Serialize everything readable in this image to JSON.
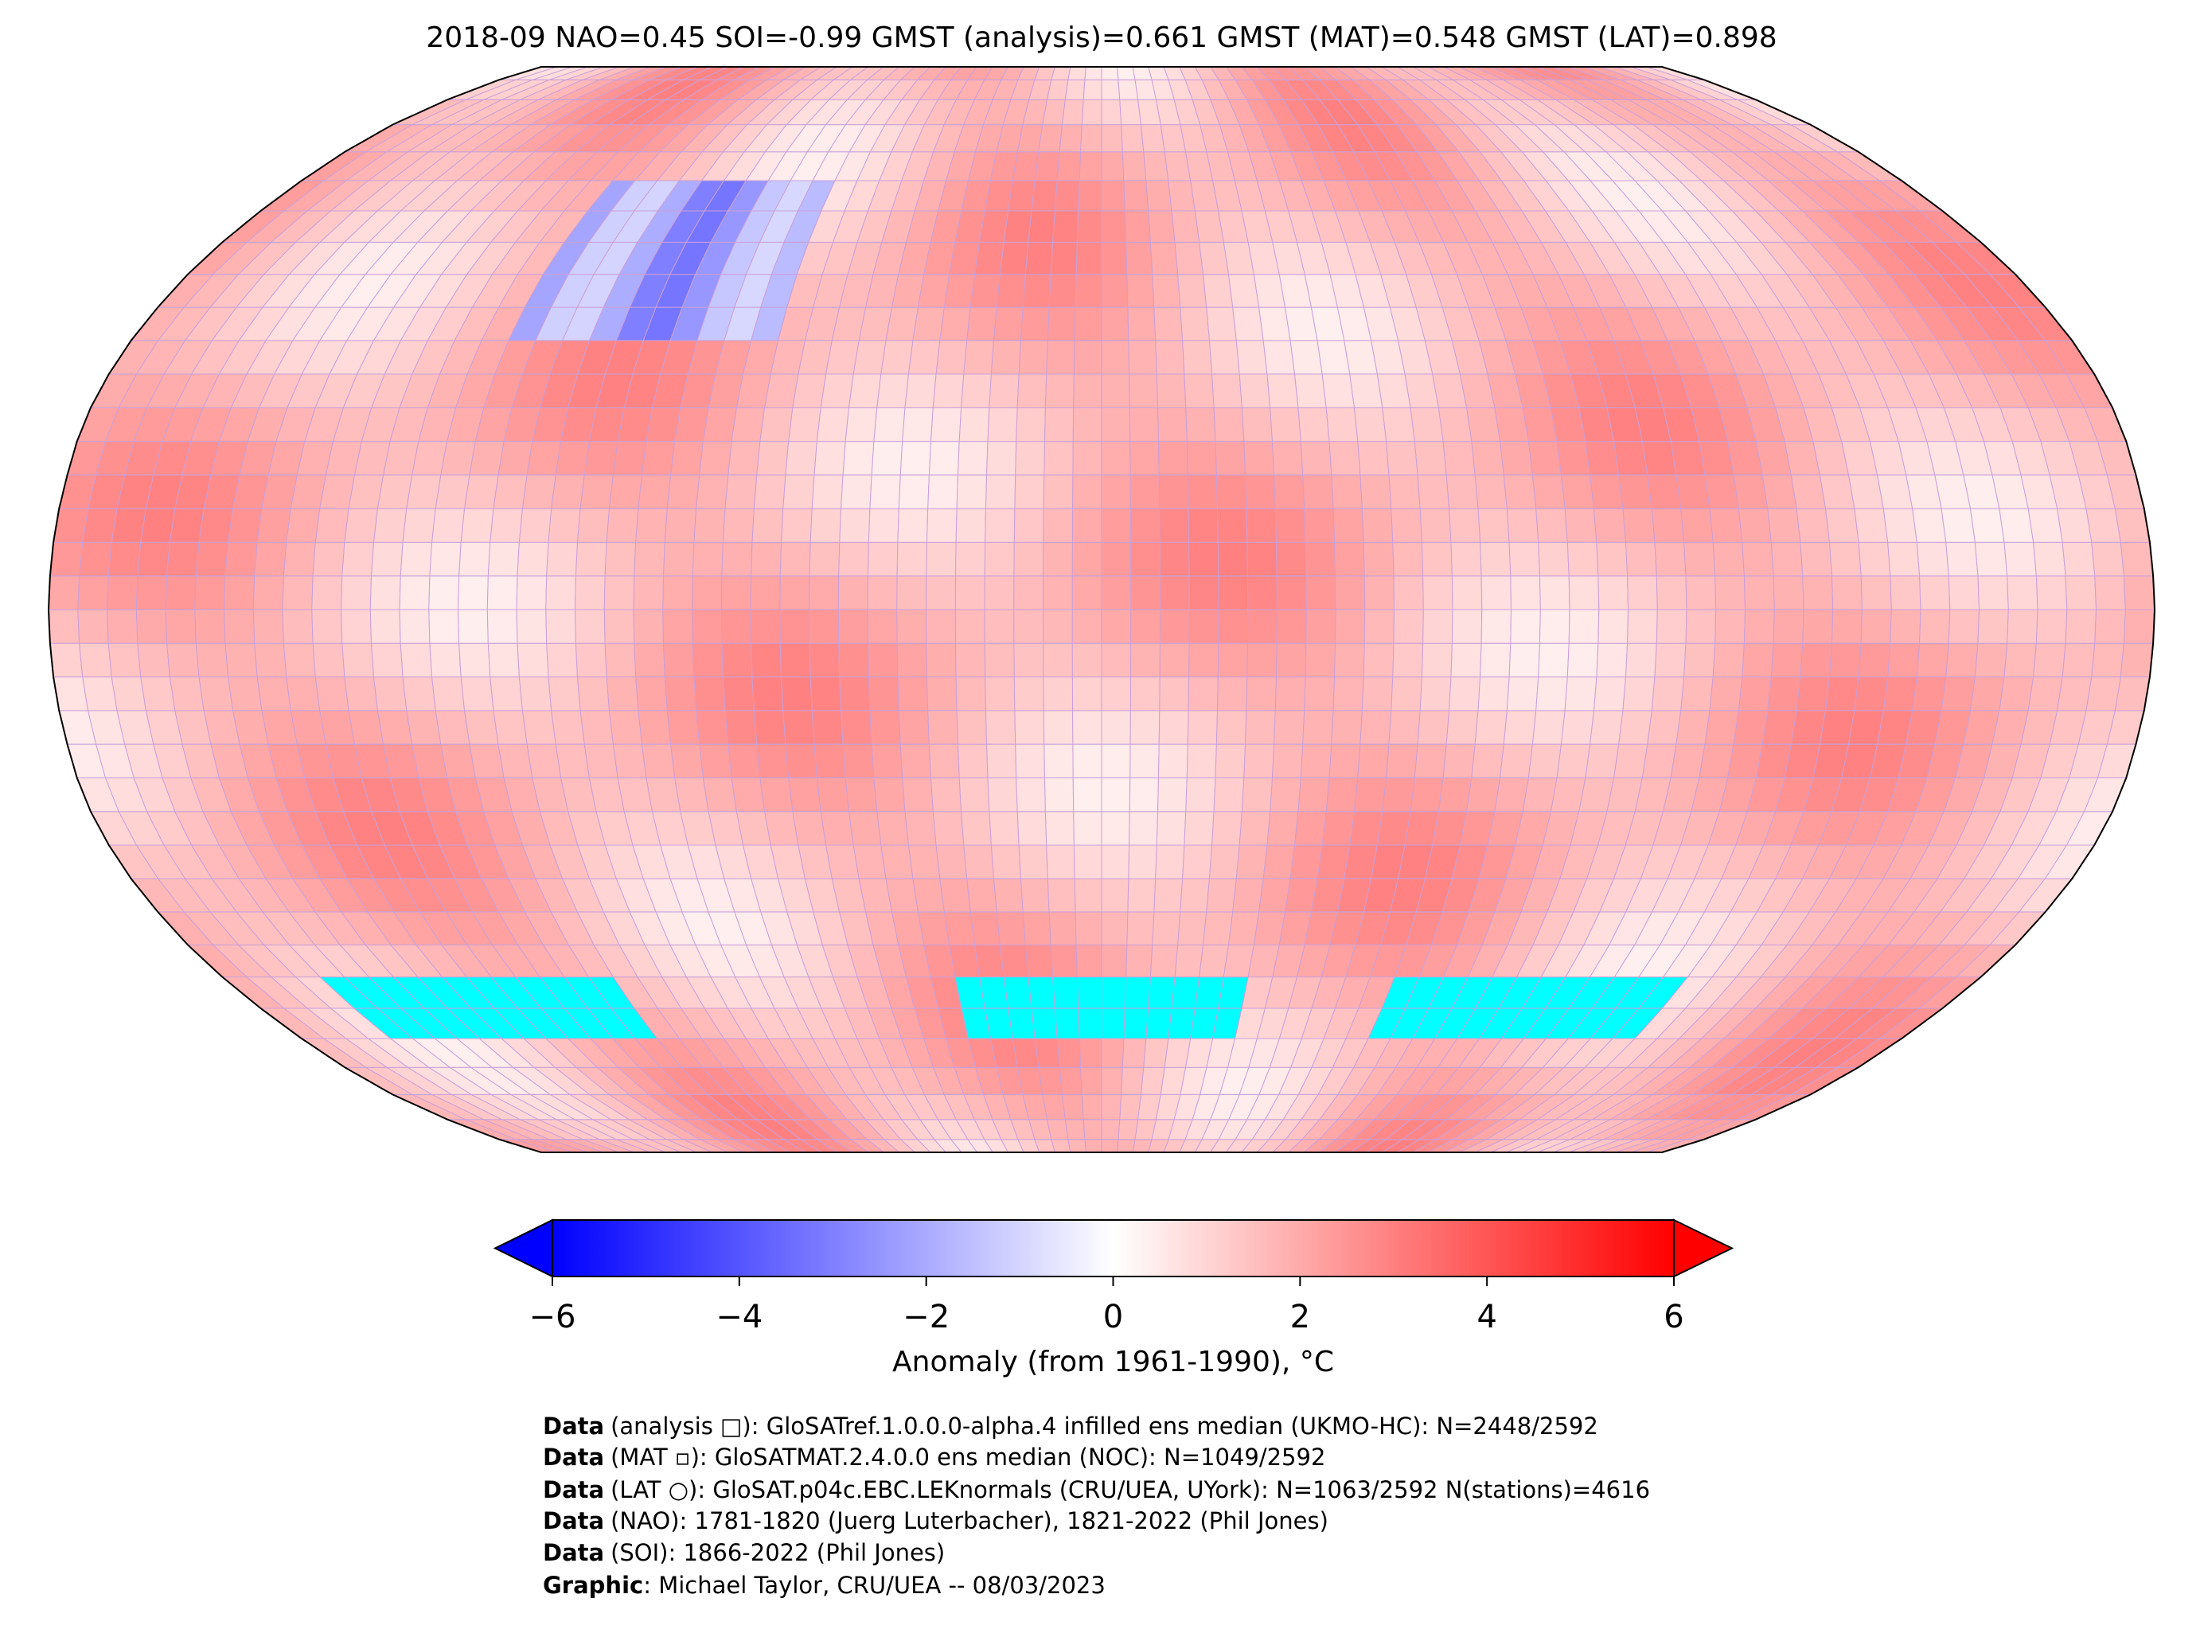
{
  "map": {
    "title": "2018-09 NAO=0.45 SOI=-0.99 GMST (analysis)=0.661 GMST (MAT)=0.548 GMST (LAT)=0.898",
    "colorbar": {
      "label": "Anomaly (from 1961-1990), °C",
      "colors": [
        "#0000ff",
        "#ffffff",
        "#ff0000"
      ],
      "range": [
        -6,
        6
      ],
      "ticks": [
        {
          "value": -6,
          "label": "−6"
        },
        {
          "value": -4,
          "label": "−4"
        },
        {
          "value": -2,
          "label": "−2"
        },
        0,
        2,
        4,
        6
      ]
    },
    "footer": [
      {
        "bold": "Data",
        "text": "(analysis □): GloSATref.1.0.0.0-alpha.4 infilled ens median (UKMO-HC): N=2448/2592"
      },
      {
        "bold": "Data",
        "text": "(MAT ▫): GloSATMAT.2.4.0.0 ens median (NOC): N=1049/2592"
      },
      {
        "bold": "Data",
        "text": "(LAT ○): GloSAT.p04c.EBC.LEKnormals (CRU/UEA, UYork): N=1063/2592 N(stations)=4616"
      },
      {
        "bold": "Data",
        "text": "(NAO): 1781-1820 (Juerg Luterbacher), 1821-2022 (Phil Jones)"
      },
      {
        "bold": "Data",
        "text": "(SOI): 1866-2022 (Phil Jones)"
      },
      {
        "bold": "Graphic",
        "text": ": Michael Taylor, CRU/UEA -- 08/03/2023"
      }
    ]
  }
}
